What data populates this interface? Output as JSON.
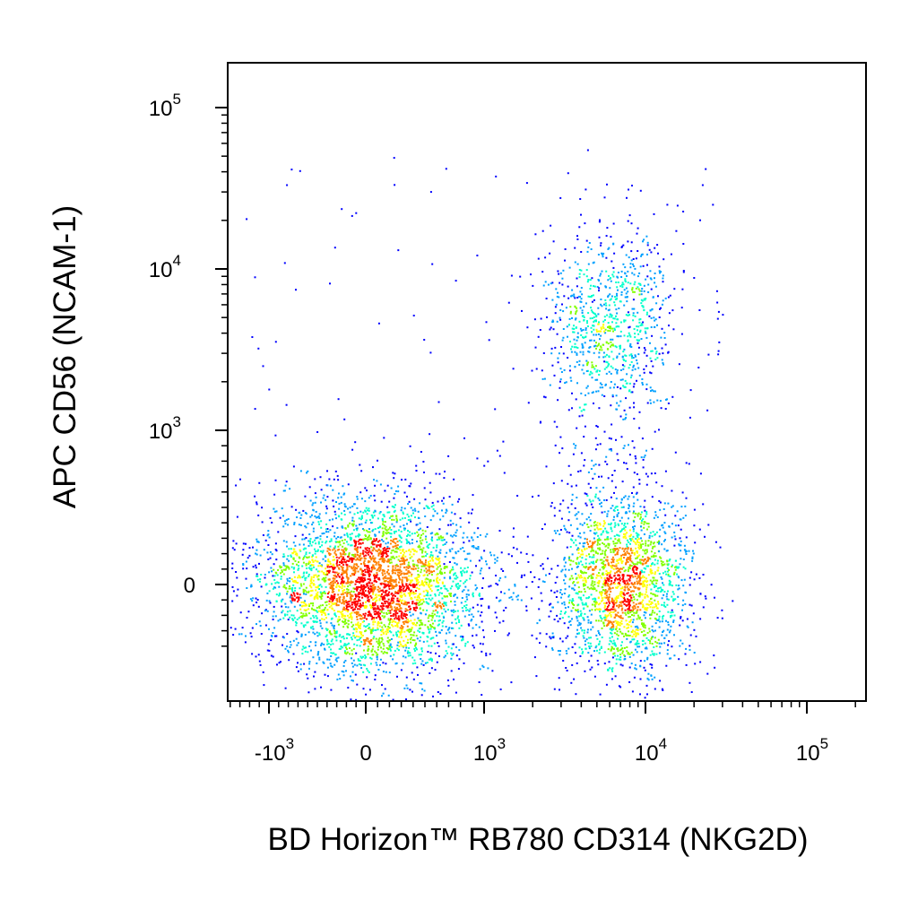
{
  "chart_data": {
    "type": "scatter",
    "subtype": "flow-cytometry-density-dot-plot",
    "xlabel": "BD Horizon™ RB780 CD314 (NKG2D)",
    "ylabel": "APC CD56  (NCAM-1)",
    "x_scale": "biexponential",
    "y_scale": "biexponential",
    "x_ticks": [
      {
        "value": -1000,
        "base": "-10",
        "exp": "3"
      },
      {
        "value": 0,
        "base": "0",
        "exp": ""
      },
      {
        "value": 1000,
        "base": "10",
        "exp": "3"
      },
      {
        "value": 10000,
        "base": "10",
        "exp": "4"
      },
      {
        "value": 100000,
        "base": "10",
        "exp": "5"
      }
    ],
    "y_ticks": [
      {
        "value": 0,
        "base": "0",
        "exp": ""
      },
      {
        "value": 1000,
        "base": "10",
        "exp": "3"
      },
      {
        "value": 10000,
        "base": "10",
        "exp": "4"
      },
      {
        "value": 100000,
        "base": "10",
        "exp": "5"
      }
    ],
    "xlim": [
      -1800,
      262144
    ],
    "ylim": [
      -500,
      262144
    ],
    "grid": false,
    "legend": "none",
    "density_colors": [
      "#0000ff",
      "#00a0ff",
      "#00ffcc",
      "#80ff00",
      "#ffff00",
      "#ff8000",
      "#ff0000"
    ],
    "populations": [
      {
        "x_center": 50,
        "y_center": 0,
        "approx_events": 3800
      },
      {
        "x_center": 7000,
        "y_center": 0,
        "approx_events": 2000
      },
      {
        "x_center": 6000,
        "y_center": 5000,
        "approx_events": 800
      }
    ]
  }
}
